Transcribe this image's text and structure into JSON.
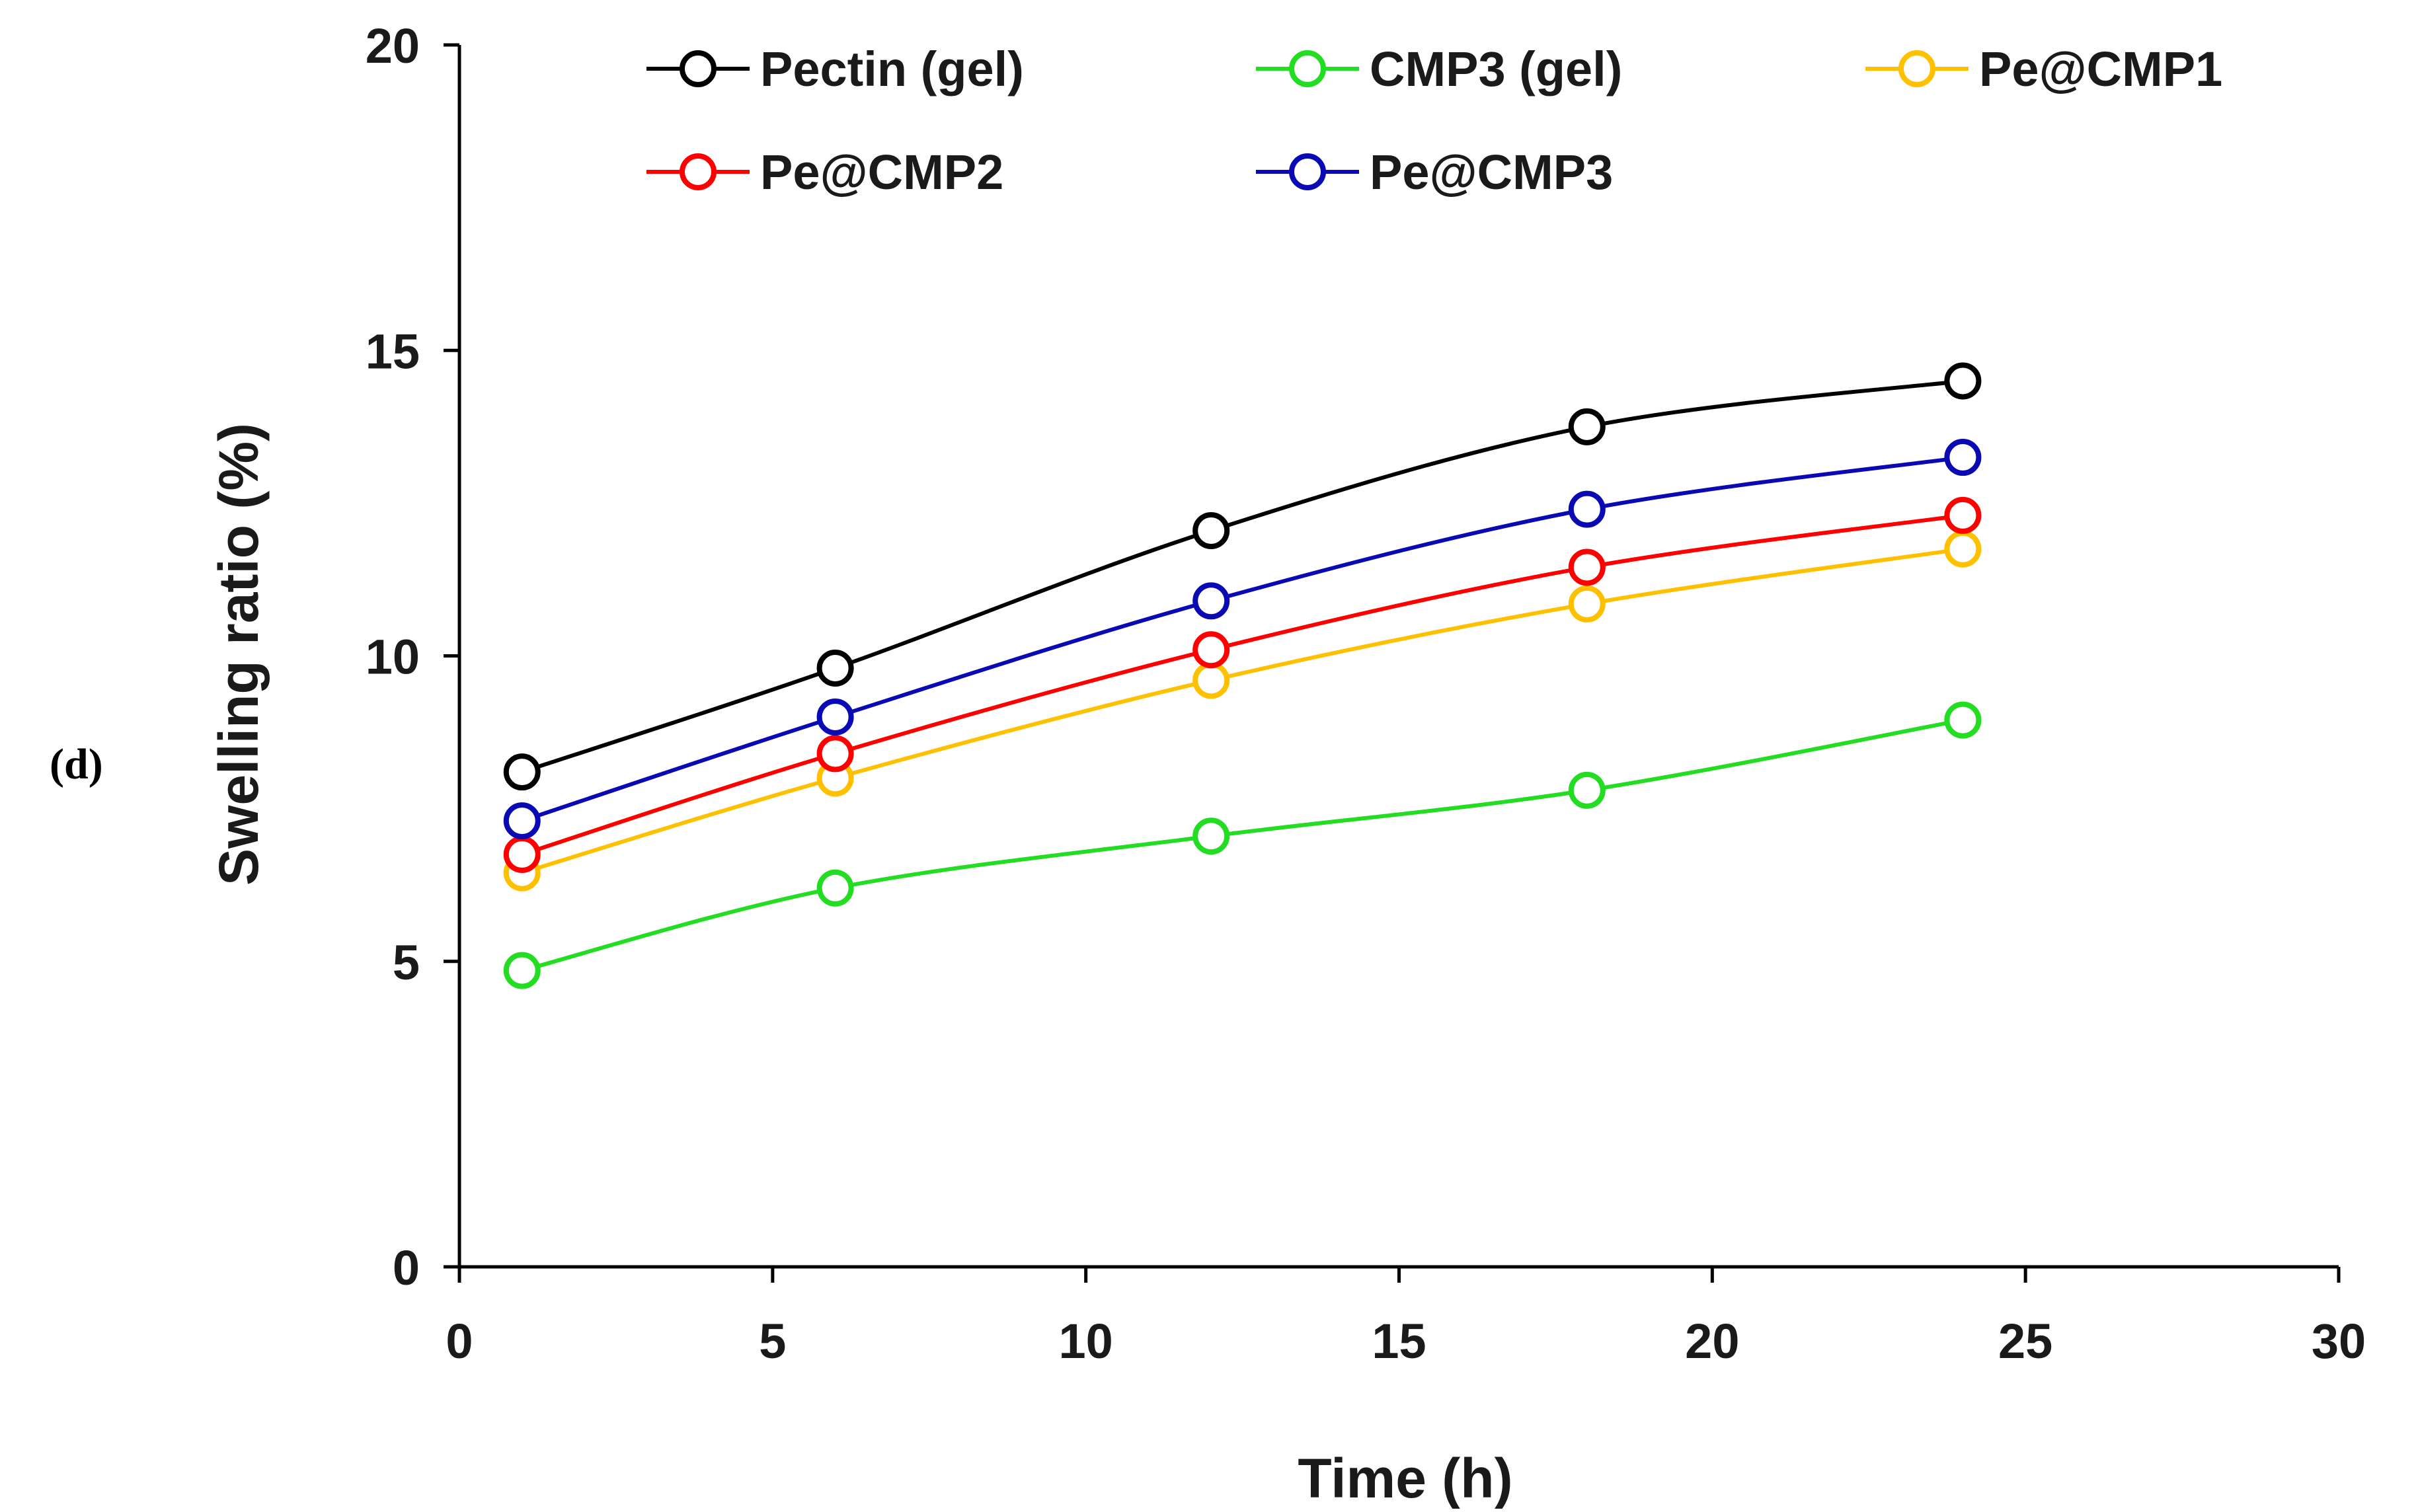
{
  "panel": {
    "open": "(",
    "letter": "d",
    "close": ")"
  },
  "chart_data": {
    "type": "line",
    "title": "",
    "xlabel": "Time (h)",
    "ylabel": "Swelling ratio (%)",
    "xlim": [
      0,
      30
    ],
    "ylim": [
      0,
      20
    ],
    "xticks": [
      0,
      5,
      10,
      15,
      20,
      25,
      30
    ],
    "yticks": [
      0,
      5,
      10,
      15,
      20
    ],
    "grid": false,
    "legend_position": "top",
    "x": [
      1,
      6,
      12,
      18,
      24
    ],
    "series": [
      {
        "name": "Pectin (gel)",
        "color": "#000000",
        "values": [
          8.1,
          9.8,
          12.05,
          13.75,
          14.5
        ]
      },
      {
        "name": "CMP3 (gel)",
        "color": "#22dd22",
        "values": [
          4.85,
          6.2,
          7.05,
          7.8,
          8.95
        ]
      },
      {
        "name": "Pe@CMP1",
        "color": "#ffc000",
        "values": [
          6.45,
          8.0,
          9.6,
          10.85,
          11.75
        ]
      },
      {
        "name": "Pe@CMP2",
        "color": "#ff0000",
        "values": [
          6.75,
          8.4,
          10.1,
          11.45,
          12.3
        ]
      },
      {
        "name": "Pe@CMP3",
        "color": "#0a0ab4",
        "values": [
          7.3,
          9.0,
          10.9,
          12.4,
          13.25
        ]
      }
    ]
  }
}
